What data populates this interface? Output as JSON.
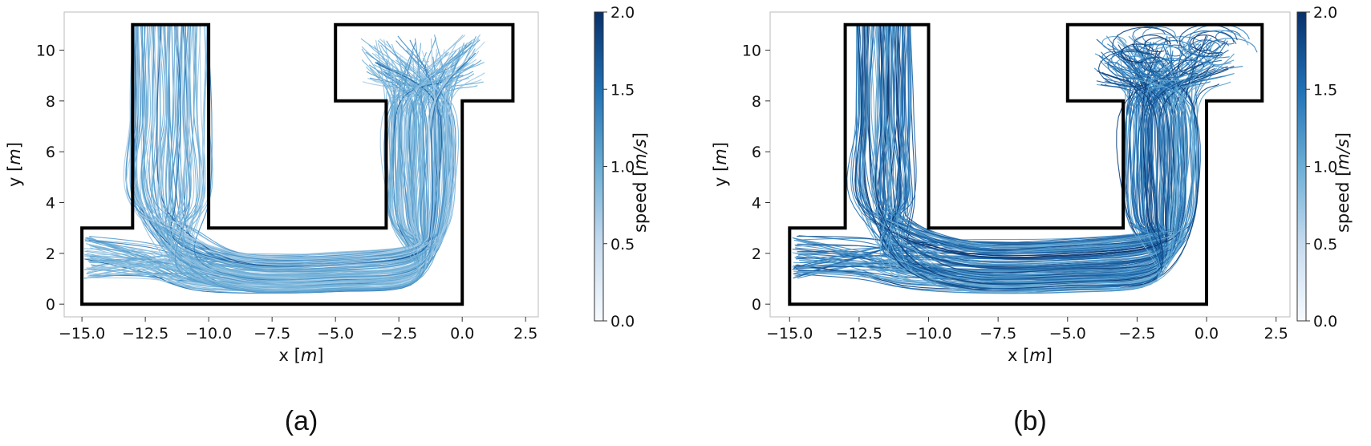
{
  "chart_data": [
    {
      "type": "line",
      "panel_label": "(a)",
      "xlabel_base": "x",
      "xlabel_unit": "m",
      "ylabel_base": "y",
      "ylabel_unit": "m",
      "xlim": [
        -15.7,
        3.0
      ],
      "ylim": [
        -0.5,
        11.5
      ],
      "xticks": [
        -15.0,
        -12.5,
        -10.0,
        -7.5,
        -5.0,
        -2.5,
        0.0,
        2.5
      ],
      "xtick_labels": [
        "−15.0",
        "−12.5",
        "−10.0",
        "−7.5",
        "−5.0",
        "−2.5",
        "0.0",
        "2.5"
      ],
      "yticks": [
        0,
        2,
        4,
        6,
        8,
        10
      ],
      "ytick_labels": [
        "0",
        "2",
        "4",
        "6",
        "8",
        "10"
      ],
      "grid": false,
      "colormap": "Blues",
      "speed_scale": 0.75,
      "colorbar": {
        "label_base": "speed",
        "label_unit": "m/s",
        "range": [
          0.0,
          2.0
        ],
        "ticks": [
          0.0,
          0.5,
          1.0,
          1.5,
          2.0
        ],
        "tick_labels": [
          "0.0",
          "0.5",
          "1.0",
          "1.5",
          "2.0"
        ]
      },
      "walls": [
        [
          [
            -13,
            11
          ],
          [
            -13,
            3
          ],
          [
            -15,
            3
          ],
          [
            -15,
            0
          ],
          [
            0,
            0
          ],
          [
            0,
            8
          ],
          [
            2,
            8
          ],
          [
            2,
            11
          ],
          [
            -5,
            11
          ],
          [
            -5,
            8
          ],
          [
            -3,
            8
          ],
          [
            -3,
            3
          ],
          [
            -10,
            3
          ],
          [
            -10,
            11
          ]
        ]
      ],
      "trajectory_bundles": [
        {
          "from": "left-entrance",
          "x_start": [
            -14.9,
            -14.9
          ],
          "y_start": [
            1.0,
            2.7
          ],
          "y_end": [
            0.5,
            1.9
          ],
          "count": 60
        },
        {
          "from": "top-left-corridor",
          "x_start": [
            -13.0,
            -10.0
          ],
          "y_start": [
            11.0,
            11.0
          ],
          "y_end": [
            0.4,
            2.0
          ],
          "count": 90
        },
        {
          "to": "right-room",
          "x_end": [
            -3.8,
            0.8
          ],
          "y_end": [
            8.5,
            10.8
          ],
          "count": 70
        }
      ]
    },
    {
      "type": "line",
      "panel_label": "(b)",
      "xlabel_base": "x",
      "xlabel_unit": "m",
      "ylabel_base": "y",
      "ylabel_unit": "m",
      "xlim": [
        -15.7,
        3.0
      ],
      "ylim": [
        -0.5,
        11.5
      ],
      "xticks": [
        -15.0,
        -12.5,
        -10.0,
        -7.5,
        -5.0,
        -2.5,
        0.0,
        2.5
      ],
      "xtick_labels": [
        "−15.0",
        "−12.5",
        "−10.0",
        "−7.5",
        "−5.0",
        "−2.5",
        "0.0",
        "2.5"
      ],
      "yticks": [
        0,
        2,
        4,
        6,
        8,
        10
      ],
      "ytick_labels": [
        "0",
        "2",
        "4",
        "6",
        "8",
        "10"
      ],
      "grid": false,
      "colormap": "Blues",
      "speed_scale": 1.15,
      "colorbar": {
        "label_base": "speed",
        "label_unit": "m/s",
        "range": [
          0.0,
          2.0
        ],
        "ticks": [
          0.0,
          0.5,
          1.0,
          1.5,
          2.0
        ],
        "tick_labels": [
          "0.0",
          "0.5",
          "1.0",
          "1.5",
          "2.0"
        ]
      },
      "walls": [
        [
          [
            -13,
            11
          ],
          [
            -13,
            3
          ],
          [
            -15,
            3
          ],
          [
            -15,
            0
          ],
          [
            0,
            0
          ],
          [
            0,
            8
          ],
          [
            2,
            8
          ],
          [
            2,
            11
          ],
          [
            -5,
            11
          ],
          [
            -5,
            8
          ],
          [
            -3,
            8
          ],
          [
            -3,
            3
          ],
          [
            -10,
            3
          ],
          [
            -10,
            11
          ]
        ]
      ],
      "trajectory_bundles": [
        {
          "from": "left-entrance",
          "x_start": [
            -14.9,
            -14.9
          ],
          "y_start": [
            1.1,
            2.5
          ],
          "y_end": [
            0.5,
            2.5
          ],
          "count": 60
        },
        {
          "from": "top-left-corridor",
          "x_start": [
            -12.6,
            -10.6
          ],
          "y_start": [
            11.0,
            11.0
          ],
          "y_end": [
            0.5,
            2.5
          ],
          "count": 90
        },
        {
          "to": "right-room",
          "x_end": [
            -4.5,
            1.3
          ],
          "y_end": [
            8.3,
            10.8
          ],
          "count": 70
        }
      ]
    }
  ]
}
